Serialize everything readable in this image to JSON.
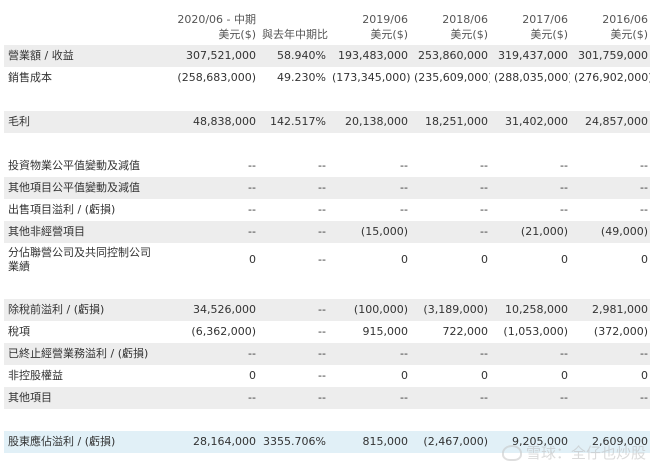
{
  "header": {
    "periods": [
      "2020/06 - 中期",
      "",
      "2019/06",
      "2018/06",
      "2017/06",
      "2016/06"
    ],
    "units": [
      "美元($)",
      "與去年中期比較",
      "美元($)",
      "美元($)",
      "美元($)",
      "美元($)"
    ]
  },
  "rows": [
    {
      "label": "營業額 / 收益",
      "values": [
        "307,521,000",
        "58.940%",
        "193,483,000",
        "253,860,000",
        "319,437,000",
        "301,759,000"
      ]
    },
    {
      "label": "銷售成本",
      "values": [
        "(258,683,000)",
        "49.230%",
        "(173,345,000)",
        "(235,609,000)",
        "(288,035,000)",
        "(276,902,000)"
      ]
    },
    {
      "label": "毛利",
      "values": [
        "48,838,000",
        "142.517%",
        "20,138,000",
        "18,251,000",
        "31,402,000",
        "24,857,000"
      ]
    },
    {
      "label": "投資物業公平值變動及減值",
      "values": [
        "--",
        "--",
        "--",
        "--",
        "--",
        "--"
      ]
    },
    {
      "label": "其他項目公平值變動及減值",
      "values": [
        "--",
        "--",
        "--",
        "--",
        "--",
        "--"
      ]
    },
    {
      "label": "出售項目溢利 / (虧損)",
      "values": [
        "--",
        "--",
        "--",
        "--",
        "--",
        "--"
      ]
    },
    {
      "label": "其他非經營項目",
      "values": [
        "--",
        "--",
        "(15,000)",
        "--",
        "(21,000)",
        "(49,000)"
      ]
    },
    {
      "label": "分佔聯營公司及共同控制公司業績",
      "values": [
        "0",
        "--",
        "0",
        "0",
        "0",
        "0"
      ]
    },
    {
      "label": "除稅前溢利 / (虧損)",
      "values": [
        "34,526,000",
        "--",
        "(100,000)",
        "(3,189,000)",
        "10,258,000",
        "2,981,000"
      ]
    },
    {
      "label": "稅項",
      "values": [
        "(6,362,000)",
        "--",
        "915,000",
        "722,000",
        "(1,053,000)",
        "(372,000)"
      ]
    },
    {
      "label": "已終止經營業務溢利 / (虧損)",
      "values": [
        "--",
        "--",
        "--",
        "--",
        "--",
        "--"
      ]
    },
    {
      "label": "非控股權益",
      "values": [
        "0",
        "--",
        "0",
        "0",
        "0",
        "0"
      ]
    },
    {
      "label": "其他項目",
      "values": [
        "--",
        "--",
        "--",
        "--",
        "--",
        "--"
      ]
    },
    {
      "label": "股東應佔溢利 / (虧損)",
      "values": [
        "28,164,000",
        "3355.706%",
        "815,000",
        "(2,467,000)",
        "9,205,000",
        "2,609,000"
      ]
    }
  ],
  "watermark": "雪球：全仔也炒股"
}
